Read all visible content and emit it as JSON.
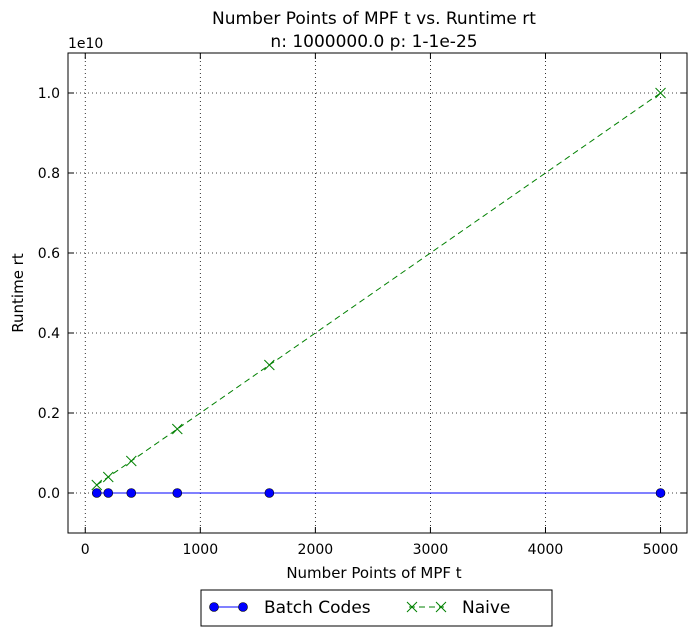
{
  "chart_data": {
    "type": "line",
    "title": "Number Points of MPF t  vs. Runtime rt",
    "subtitle": "n: 1000000.0 p: 1-1e-25",
    "xlabel": "Number Points of MPF t",
    "ylabel": "Runtime rt",
    "y_scale_label": "1e10",
    "xlim": [
      -150,
      5230
    ],
    "ylim": [
      -0.1,
      1.1
    ],
    "x_ticks": [
      0,
      1000,
      2000,
      3000,
      4000,
      5000
    ],
    "x_tick_labels": [
      "0",
      "1000",
      "2000",
      "3000",
      "4000",
      "5000"
    ],
    "y_ticks": [
      0.0,
      0.2,
      0.4,
      0.6,
      0.8,
      1.0
    ],
    "y_tick_labels": [
      "0.0",
      "0.2",
      "0.4",
      "0.6",
      "0.8",
      "1.0"
    ],
    "grid": true,
    "legend_position": "bottom-center",
    "series": [
      {
        "name": "Batch Codes",
        "color": "#0000ff",
        "marker": "circle",
        "line_style": "solid",
        "x": [
          100,
          200,
          400,
          800,
          1600,
          5000
        ],
        "y": [
          0.0,
          0.0,
          0.0,
          0.0,
          0.0,
          0.0
        ]
      },
      {
        "name": "Naive",
        "color": "#008000",
        "marker": "x",
        "line_style": "dashed",
        "x": [
          100,
          200,
          400,
          800,
          1600,
          5000
        ],
        "y": [
          0.02,
          0.04,
          0.08,
          0.16,
          0.32,
          1.0
        ]
      }
    ]
  }
}
